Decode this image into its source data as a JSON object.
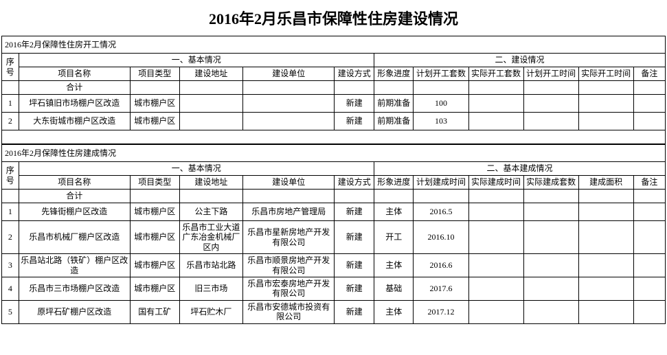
{
  "page_title": "2016年2月乐昌市保障性住房建设情况",
  "section1": {
    "title": "2016年2月保障性住房开工情况",
    "group_basic": "一、基本情况",
    "group_build": "二、建设情况",
    "headers": {
      "seq": "序号",
      "name": "项目名称",
      "type": "项目类型",
      "addr": "建设地址",
      "unit": "建设单位",
      "method": "建设方式",
      "progress": "形象进度",
      "plan_count": "计划开工套数",
      "actual_count": "实际开工套数",
      "plan_time": "计划开工时间",
      "actual_time": "实际开工时间",
      "remark": "备注"
    },
    "total_label": "合计",
    "rows": [
      {
        "seq": "1",
        "name": "坪石镇旧市场棚户区改造",
        "type": "城市棚户区",
        "addr": "",
        "unit": "",
        "method": "新建",
        "progress": "前期准备",
        "plan_count": "100",
        "actual_count": "",
        "plan_time": "",
        "actual_time": "",
        "remark": ""
      },
      {
        "seq": "2",
        "name": "大东街城市棚户区改造",
        "type": "城市棚户区",
        "addr": "",
        "unit": "",
        "method": "新建",
        "progress": "前期准备",
        "plan_count": "103",
        "actual_count": "",
        "plan_time": "",
        "actual_time": "",
        "remark": ""
      }
    ]
  },
  "section2": {
    "title": "2016年2月保障性住房建成情况",
    "group_basic": "一、基本情况",
    "group_build": "二、基本建成情况",
    "headers": {
      "seq": "序号",
      "name": "项目名称",
      "type": "项目类型",
      "addr": "建设地址",
      "unit": "建设单位",
      "method": "建设方式",
      "progress": "形象进度",
      "plan_time": "计划建成时间",
      "actual_time": "实际建成时间",
      "actual_count": "实际建成套数",
      "area": "建成面积",
      "remark": "备注"
    },
    "total_label": "合计",
    "rows": [
      {
        "seq": "1",
        "name": "先锋街棚户区改造",
        "type": "城市棚户区",
        "addr": "公主下路",
        "unit": "乐昌市房地产管理局",
        "method": "新建",
        "progress": "主体",
        "plan_time": "2016.5",
        "actual_time": "",
        "actual_count": "",
        "area": "",
        "remark": ""
      },
      {
        "seq": "2",
        "name": "乐昌市机械厂棚户区改造",
        "type": "城市棚户区",
        "addr": "乐昌市工业大道广东冶金机械厂区内",
        "unit": "乐昌市星新房地产开发有限公司",
        "method": "新建",
        "progress": "开工",
        "plan_time": "2016.10",
        "actual_time": "",
        "actual_count": "",
        "area": "",
        "remark": ""
      },
      {
        "seq": "3",
        "name": "乐昌站北路（铁矿）棚户区改造",
        "type": "城市棚户区",
        "addr": "乐昌市站北路",
        "unit": "乐昌市顺景房地产开发有限公司",
        "method": "新建",
        "progress": "主体",
        "plan_time": "2016.6",
        "actual_time": "",
        "actual_count": "",
        "area": "",
        "remark": ""
      },
      {
        "seq": "4",
        "name": "乐昌市三市场棚户区改造",
        "type": "城市棚户区",
        "addr": "旧三市场",
        "unit": "乐昌市宏泰房地产开发有限公司",
        "method": "新建",
        "progress": "基础",
        "plan_time": "2017.6",
        "actual_time": "",
        "actual_count": "",
        "area": "",
        "remark": ""
      },
      {
        "seq": "5",
        "name": "原坪石矿棚户区改造",
        "type": "国有工矿",
        "addr": "坪石贮木厂",
        "unit": "乐昌市安德城市投资有限公司",
        "method": "新建",
        "progress": "主体",
        "plan_time": "2017.12",
        "actual_time": "",
        "actual_count": "",
        "area": "",
        "remark": ""
      }
    ]
  }
}
